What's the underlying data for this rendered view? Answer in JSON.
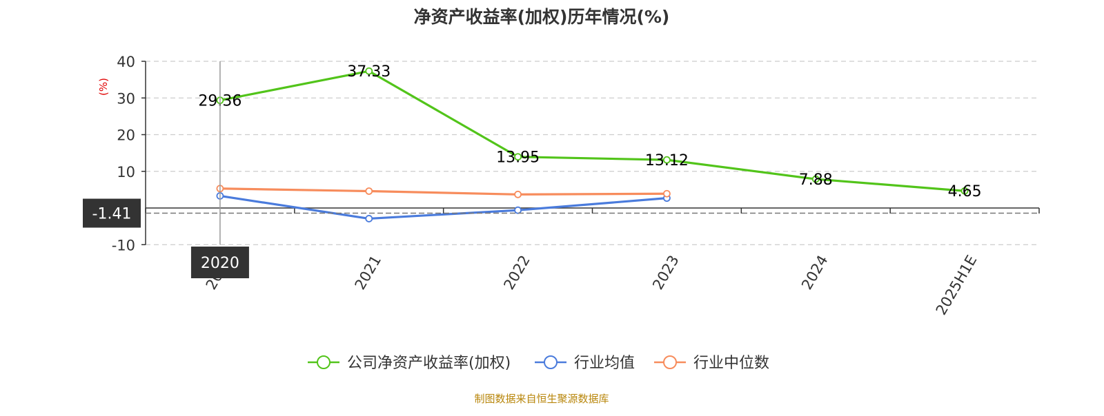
{
  "chart_data": {
    "type": "line",
    "title": "净资产收益率(加权)历年情况(%)",
    "ylabel": "(%)",
    "categories": [
      "2020",
      "2021",
      "2022",
      "2023",
      "2024",
      "2025H1E"
    ],
    "ylim": [
      -10,
      40
    ],
    "yticks": [
      -10,
      10,
      20,
      30,
      40
    ],
    "grid": true,
    "legend_position": "bottom",
    "series": [
      {
        "name": "公司净资产收益率(加权)",
        "color": "#52c41a",
        "values": [
          29.36,
          37.33,
          13.95,
          13.12,
          7.88,
          4.65
        ],
        "labels": [
          "29.36",
          "37.33",
          "13.95",
          "13.12",
          "7.88",
          "4.65"
        ]
      },
      {
        "name": "行业均值",
        "color": "#4a7bdc",
        "values": [
          3.3,
          -2.9,
          -0.6,
          2.7,
          null,
          null
        ]
      },
      {
        "name": "行业中位数",
        "color": "#f78c5c",
        "values": [
          5.3,
          4.6,
          3.7,
          3.9,
          null,
          null
        ]
      }
    ],
    "crosshair": {
      "category": "2020",
      "y_value_label": "-1.41",
      "y_value": -1.41,
      "x_label": "2020"
    }
  },
  "source": {
    "text": "制图数据来自恒生聚源数据库",
    "color": "#b8860b"
  }
}
